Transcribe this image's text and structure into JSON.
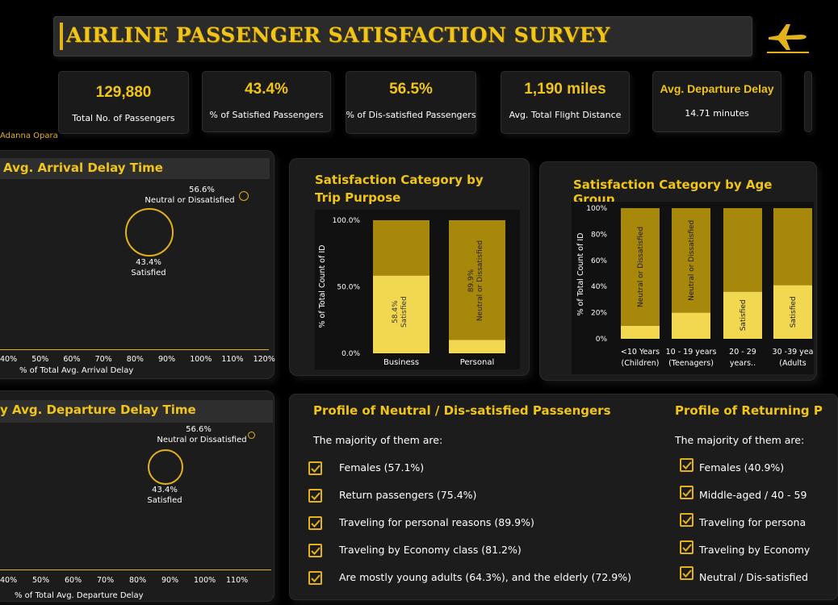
{
  "title": "AIRLINE PASSENGER SATISFACTION SURVEY",
  "author": "Adanna Opara",
  "colors": {
    "gold": "#e3b21a",
    "dark_gold": "#a8880b",
    "light_gold": "#f2d850",
    "panel": "#1c1c1c"
  },
  "kpis": [
    {
      "value": "129,880",
      "label": "Total No. of Passengers"
    },
    {
      "value": "43.4%",
      "label": "% of Satisfied Passengers"
    },
    {
      "value": "56.5%",
      "label": "% of Dis-satisfied Passengers"
    },
    {
      "value": "1,190 miles",
      "label": "Avg. Total Flight Distance"
    },
    {
      "value": "Avg. Departure Delay",
      "label": "14.71 minutes"
    }
  ],
  "arrival": {
    "title": "Avg. Arrival Delay Time",
    "xlabel": "% of Total Avg. Arrival Delay",
    "ticks": [
      "40%",
      "50%",
      "60%",
      "70%",
      "80%",
      "90%",
      "100%",
      "110%",
      "120%"
    ],
    "dis_label": "Neutral or Dissatisfied",
    "dis_pct": "56.6%",
    "sat_label": "Satisfied",
    "sat_pct": "43.4%"
  },
  "departure": {
    "title": "y Avg. Departure Delay Time",
    "xlabel": "% of Total Avg. Departure Delay",
    "ticks": [
      "40%",
      "50%",
      "60%",
      "70%",
      "80%",
      "90%",
      "100%",
      "110%"
    ],
    "dis_label": "Neutral or Dissatisfied",
    "dis_pct": "56.6%",
    "sat_label": "Satisfied",
    "sat_pct": "43.4%"
  },
  "chart_data": [
    {
      "type": "bar",
      "title": "Satisfaction Category by Trip Purpose",
      "ylabel": "% of Total Count of ID",
      "yticks": [
        "100.0%",
        "50.0%",
        "0.0%"
      ],
      "categories": [
        "Business",
        "Personal"
      ],
      "series": [
        {
          "name": "Satisfied",
          "values": [
            58.4,
            10.1
          ]
        },
        {
          "name": "Neutral or Dissatisfied",
          "values": [
            41.6,
            89.9
          ]
        }
      ],
      "bar_labels": [
        {
          "pct": "58.4%",
          "name": "Satisfied"
        },
        {
          "pct": "89.9%",
          "name": "Neutral or Dissatisfied"
        }
      ],
      "ylim": [
        0,
        100
      ]
    },
    {
      "type": "bar",
      "title": "Satisfaction Category by Age Group",
      "ylabel": "% of Total Count of ID",
      "yticks": [
        "100%",
        "80%",
        "60%",
        "40%",
        "20%",
        "0%"
      ],
      "categories": [
        "<10 Years (Children)",
        "10 - 19 years (Teenagers)",
        "20 - 29 years..",
        "30 -39 yea (Adults"
      ],
      "category_lines": [
        [
          "<10 Years",
          "(Children)"
        ],
        [
          "10 - 19 years",
          "(Teenagers)"
        ],
        [
          "20 - 29",
          "years.."
        ],
        [
          "30 -39 yea",
          "(Adults"
        ]
      ],
      "series": [
        {
          "name": "Satisfied",
          "values": [
            10,
            20,
            36,
            41
          ]
        },
        {
          "name": "Neutral or Dissatisfied",
          "values": [
            90,
            80,
            64,
            59
          ]
        }
      ],
      "bar_labels": [
        "Neutral or Dissatisfied",
        "Neutral or Dissatisfied",
        "Satisfied",
        "Satisfied"
      ],
      "ylim": [
        0,
        100
      ]
    }
  ],
  "profile_neutral": {
    "title": "Profile of Neutral / Dis-satisfied Passengers",
    "intro": "The majority of them are:",
    "items": [
      "Females (57.1%)",
      "Return passengers (75.4%)",
      "Traveling for personal reasons (89.9%)",
      "Traveling by Economy class (81.2%)",
      "Are mostly young adults (64.3%), and the elderly (72.9%)"
    ]
  },
  "profile_returning": {
    "title": "Profile of Returning P",
    "intro": "The majority of them are:",
    "items": [
      "Females (40.9%)",
      "Middle-aged  / 40 - 59",
      "Traveling for persona",
      "Traveling by Economy",
      "Neutral / Dis-satisfied"
    ]
  }
}
